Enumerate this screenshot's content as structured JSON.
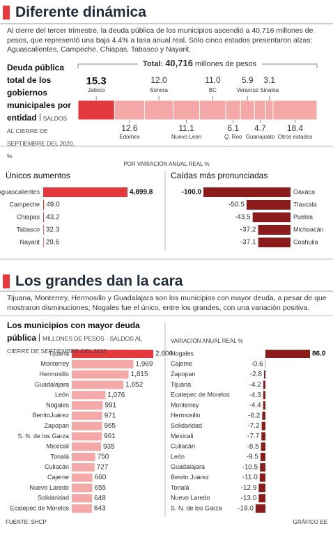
{
  "sections": [
    {
      "title": "Diferente dinámica",
      "text": "Al cierre del tercer trimestre, la deuda pública de los municipios ascendió a 40,716 millones de pesos, que representó una baja 4.4% a tasa anual real. Sólo cinco estados presentaron alzas: Aguascalientes, Campeche, Chiapas, Tabasco y Nayarit.",
      "note": "POR VARIACIÓN ANUAL REAL %"
    },
    {
      "title": "Los grandes dan la cara",
      "text": "Tijuana, Monterrey, Hermosillo y Guadalajara son los municipios con mayor deuda, a pesar de que mostraron disminuciones; Nogales fue el único, entre los grandes, con una variación positiva."
    }
  ],
  "chart_data": [
    {
      "type": "stacked",
      "title": "Deuda pública total de los gobiernos municipales por entidad",
      "subtitle": "SALDOS AL CIERRE DE SEPTIEMBRE DEL 2020, %",
      "total_text": "Total:",
      "total": "40,716",
      "total_unit": "millones de pesos",
      "categories": [
        "Jalisco",
        "Edomex",
        "Sonora",
        "Nuevo León",
        "BC",
        "Q. Roo",
        "Veracruz",
        "Guanajuato",
        "Sinaloa",
        "Otros estados"
      ],
      "values": [
        15.3,
        12.6,
        12.0,
        11.1,
        11.0,
        6.1,
        5.9,
        4.7,
        3.1,
        18.4
      ],
      "value_labels": [
        "15.3",
        "12.6",
        "12.0",
        "11.1",
        "11.0",
        "6.1",
        "5.9",
        "4.7",
        "3.1",
        "18.4"
      ],
      "colors": [
        "#e3393c",
        "#f4a9a8",
        "#f4a9a8",
        "#f4a9a8",
        "#f4a9a8",
        "#f4a9a8",
        "#f4a9a8",
        "#f4a9a8",
        "#f4a9a8",
        "#f4a9a8"
      ]
    },
    {
      "type": "bar",
      "title": "Únicos aumentos",
      "categories": [
        "Aguascalientes",
        "Campeche",
        "Chiapas",
        "Tabasco",
        "Nayarit"
      ],
      "values": [
        4899.8,
        49.0,
        43.2,
        32.3,
        29.6
      ],
      "value_labels": [
        "4,899.8",
        "49.0",
        "43.2",
        "32.3",
        "29.6"
      ],
      "color": "#e3393c"
    },
    {
      "type": "bar",
      "title": "Caídas más pronunciadas",
      "categories": [
        "Oaxaca",
        "Tlaxcala",
        "Puebla",
        "Michoacán",
        "Coahuila"
      ],
      "values": [
        -100.0,
        -50.5,
        -43.5,
        -37.2,
        -37.1
      ],
      "value_labels": [
        "-100.0",
        "-50.5",
        "-43.5",
        "-37.2",
        "-37.1"
      ],
      "color": "#8c1c1c"
    },
    {
      "type": "bar",
      "title": "Los municipios con mayor deuda pública",
      "subtitle": "MILLONES DE PESOS - SALDOS AL CIERRE DE SEPTIEMBRE DEL 2020",
      "categories": [
        "Tijuana",
        "Monterrey",
        "Hermosillo",
        "Guadalajara",
        "León",
        "Nogales",
        "BenitoJuárez",
        "Zapopan",
        "S. N. de los Garza",
        "Mexicali",
        "Tonalá",
        "Culiacán",
        "Cajeme",
        "Nuevo Laredo",
        "Solidaridad",
        "Ecatepec de Morelos"
      ],
      "values": [
        2606,
        1969,
        1815,
        1652,
        1076,
        991,
        971,
        965,
        961,
        935,
        750,
        727,
        660,
        655,
        648,
        643
      ],
      "value_labels": [
        "2,606",
        "1,969",
        "1,815",
        "1,652",
        "1,076",
        "991",
        "971",
        "965",
        "961",
        "935",
        "750",
        "727",
        "660",
        "655",
        "648",
        "643"
      ],
      "colors": [
        "#e3393c",
        "#f4a9a8",
        "#f4a9a8",
        "#f4a9a8",
        "#f4a9a8",
        "#f4a9a8",
        "#f4a9a8",
        "#f4a9a8",
        "#f4a9a8",
        "#f4a9a8",
        "#f4a9a8",
        "#f4a9a8",
        "#f4a9a8",
        "#f4a9a8",
        "#f4a9a8",
        "#f4a9a8"
      ]
    },
    {
      "type": "bar",
      "title": "VARIACIÓN ANUAL REAL %",
      "categories": [
        "Nogales",
        "Cajeme",
        "Zapopan",
        "Tijuana",
        "Ecatepec de Morelos",
        "Monterrey",
        "Hermosillo",
        "Solidaridad",
        "Mexicali",
        "Culiacán",
        "León",
        "Guadalajara",
        "Benito Juárez",
        "Tonalá",
        "Nuevo Laredo",
        "S. N. de los Garza"
      ],
      "values": [
        86.0,
        -0.6,
        -2.8,
        -4.2,
        -4.3,
        -4.4,
        -6.2,
        -7.2,
        -7.7,
        -8.5,
        -9.5,
        -10.5,
        -11.0,
        -12.9,
        -13.0,
        -19.0
      ],
      "value_labels": [
        "86.0",
        "-0.6",
        "-2.8",
        "-4.2",
        "-4.3",
        "-4.4",
        "-6.2",
        "-7.2",
        "-7.7",
        "-8.5",
        "-9.5",
        "-10.5",
        "-11.0",
        "-12.9",
        "-13.0",
        "-19.0"
      ],
      "color": "#8c1c1c"
    }
  ],
  "source": "FUENTE: SHCP",
  "credit": "GRÁFICO EE"
}
